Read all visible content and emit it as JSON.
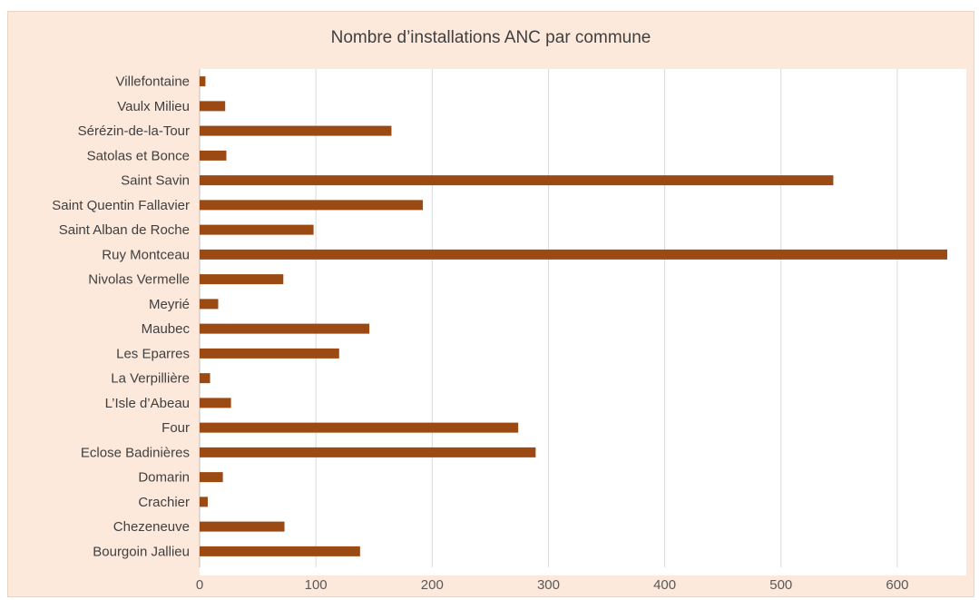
{
  "chart_data": {
    "type": "bar",
    "orientation": "horizontal",
    "title": "Nombre d’installations ANC par commune",
    "xlabel": "",
    "ylabel": "",
    "xlim": [
      0,
      650
    ],
    "x_ticks": [
      0,
      100,
      200,
      300,
      400,
      500,
      600
    ],
    "grid": true,
    "legend": "none",
    "colors": {
      "bar": "#9c4a13",
      "background": "#fce9dc",
      "plot_background": "#ffffff",
      "grid": "#d9d9d9"
    },
    "categories": [
      "Villefontaine",
      "Vaulx Milieu",
      "Sérézin-de-la-Tour",
      "Satolas et Bonce",
      "Saint Savin",
      "Saint Quentin Fallavier",
      "Saint Alban de Roche",
      "Ruy Montceau",
      "Nivolas Vermelle",
      "Meyrié",
      "Maubec",
      "Les Eparres",
      "La Verpillière",
      "L’Isle d’Abeau",
      "Four",
      "Eclose Badinières",
      "Domarin",
      "Crachier",
      "Chezeneuve",
      "Bourgoin Jallieu"
    ],
    "values": [
      5,
      22,
      165,
      23,
      545,
      192,
      98,
      643,
      72,
      16,
      146,
      120,
      9,
      27,
      274,
      289,
      20,
      7,
      73,
      138
    ]
  }
}
